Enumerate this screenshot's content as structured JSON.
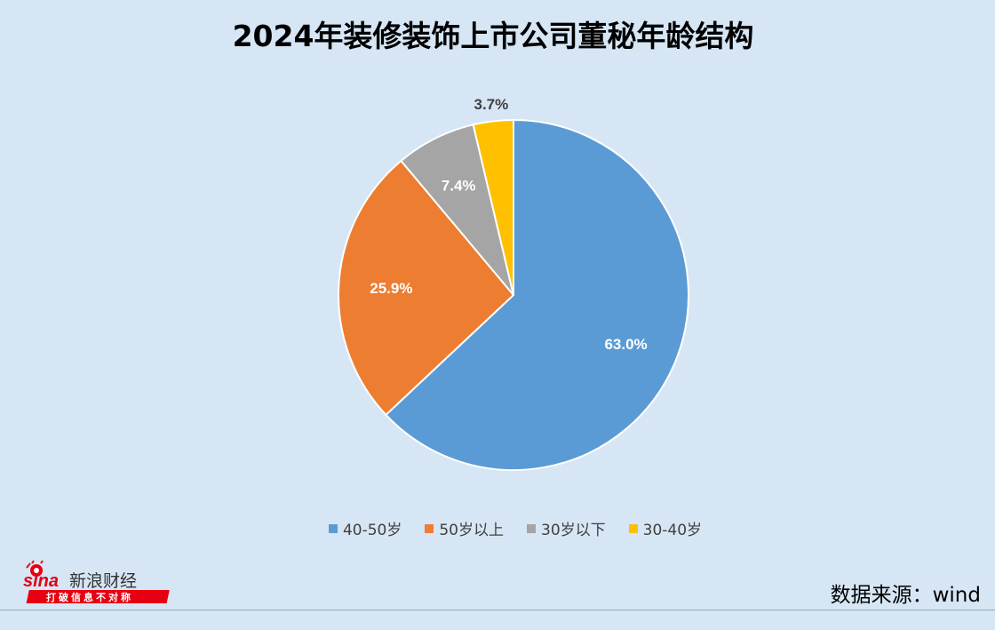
{
  "chart_data": {
    "type": "pie",
    "title": "2024年装修装饰上市公司董秘年龄结构",
    "categories": [
      "40-50岁",
      "50岁以上",
      "30岁以下",
      "30-40岁"
    ],
    "values": [
      63.0,
      25.9,
      7.4,
      3.7
    ],
    "value_labels": [
      "63.0%",
      "25.9%",
      "7.4%",
      "3.7%"
    ],
    "colors": [
      "#5b9bd5",
      "#ed7d31",
      "#a5a5a5",
      "#ffc000"
    ],
    "legend_position": "bottom"
  },
  "logo": {
    "brand_text": "新浪财经",
    "slogan": "打破信息不对称"
  },
  "source": "数据来源：wind"
}
